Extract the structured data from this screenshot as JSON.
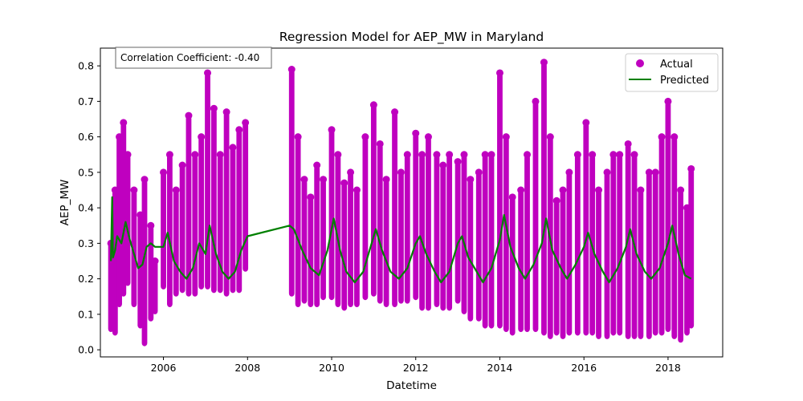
{
  "colors": {
    "actual": "#bf00bf",
    "predicted": "#008000",
    "axis": "#000000",
    "background": "#ffffff"
  },
  "chart_data": {
    "type": "scatter",
    "title": "Regression Model for AEP_MW in Maryland",
    "xlabel": "Datetime",
    "ylabel": "AEP_MW",
    "xlim": [
      2004.5,
      2019.3
    ],
    "ylim": [
      -0.02,
      0.85
    ],
    "x_ticks": [
      2006,
      2008,
      2010,
      2012,
      2014,
      2016,
      2018
    ],
    "x_tick_labels": [
      "2006",
      "2008",
      "2010",
      "2012",
      "2014",
      "2016",
      "2018"
    ],
    "y_ticks": [
      0.0,
      0.1,
      0.2,
      0.3,
      0.4,
      0.5,
      0.6,
      0.7,
      0.8
    ],
    "y_tick_labels": [
      "0.0",
      "0.1",
      "0.2",
      "0.3",
      "0.4",
      "0.5",
      "0.6",
      "0.7",
      "0.8"
    ],
    "grid": false,
    "legend_position": "top-right",
    "annotation": "Correlation Coefficient: -0.40",
    "series": [
      {
        "name": "Actual",
        "kind": "scatter",
        "color": "#bf00bf",
        "x": [
          2004.75,
          2004.85,
          2004.95,
          2005.05,
          2005.15,
          2005.3,
          2005.45,
          2005.55,
          2005.7,
          2005.8,
          2006.0,
          2006.15,
          2006.3,
          2006.45,
          2006.6,
          2006.75,
          2006.9,
          2007.05,
          2007.2,
          2007.35,
          2007.5,
          2007.65,
          2007.8,
          2007.95,
          2009.05,
          2009.2,
          2009.35,
          2009.5,
          2009.65,
          2009.8,
          2010.0,
          2010.15,
          2010.3,
          2010.45,
          2010.6,
          2010.8,
          2011.0,
          2011.15,
          2011.3,
          2011.5,
          2011.65,
          2011.8,
          2012.0,
          2012.15,
          2012.3,
          2012.5,
          2012.65,
          2012.8,
          2013.0,
          2013.15,
          2013.3,
          2013.5,
          2013.65,
          2013.8,
          2014.0,
          2014.15,
          2014.3,
          2014.5,
          2014.65,
          2014.85,
          2015.05,
          2015.2,
          2015.35,
          2015.5,
          2015.65,
          2015.85,
          2016.05,
          2016.2,
          2016.35,
          2016.55,
          2016.7,
          2016.85,
          2017.05,
          2017.2,
          2017.35,
          2017.55,
          2017.7,
          2017.85,
          2018.0,
          2018.15,
          2018.3,
          2018.45,
          2018.55
        ],
        "y_max": [
          0.3,
          0.45,
          0.6,
          0.64,
          0.55,
          0.45,
          0.38,
          0.48,
          0.35,
          0.25,
          0.5,
          0.55,
          0.45,
          0.52,
          0.66,
          0.55,
          0.6,
          0.78,
          0.68,
          0.55,
          0.67,
          0.57,
          0.62,
          0.64,
          0.79,
          0.6,
          0.48,
          0.43,
          0.52,
          0.48,
          0.62,
          0.55,
          0.47,
          0.5,
          0.45,
          0.6,
          0.69,
          0.58,
          0.48,
          0.67,
          0.5,
          0.55,
          0.61,
          0.55,
          0.6,
          0.55,
          0.52,
          0.55,
          0.53,
          0.55,
          0.48,
          0.5,
          0.55,
          0.55,
          0.78,
          0.6,
          0.43,
          0.45,
          0.55,
          0.7,
          0.81,
          0.6,
          0.42,
          0.45,
          0.5,
          0.55,
          0.64,
          0.55,
          0.45,
          0.5,
          0.55,
          0.55,
          0.58,
          0.55,
          0.45,
          0.5,
          0.5,
          0.6,
          0.7,
          0.6,
          0.45,
          0.4,
          0.51
        ],
        "y_min": [
          0.05,
          0.04,
          0.12,
          0.15,
          0.18,
          0.12,
          0.06,
          0.01,
          0.08,
          0.1,
          0.17,
          0.12,
          0.15,
          0.16,
          0.15,
          0.15,
          0.17,
          0.17,
          0.16,
          0.16,
          0.15,
          0.16,
          0.16,
          0.22,
          0.15,
          0.12,
          0.13,
          0.12,
          0.12,
          0.14,
          0.14,
          0.12,
          0.11,
          0.12,
          0.12,
          0.14,
          0.15,
          0.13,
          0.12,
          0.12,
          0.13,
          0.13,
          0.14,
          0.11,
          0.11,
          0.12,
          0.11,
          0.11,
          0.13,
          0.1,
          0.08,
          0.08,
          0.06,
          0.06,
          0.06,
          0.05,
          0.04,
          0.05,
          0.05,
          0.05,
          0.04,
          0.03,
          0.04,
          0.03,
          0.04,
          0.04,
          0.04,
          0.04,
          0.03,
          0.03,
          0.04,
          0.04,
          0.03,
          0.03,
          0.03,
          0.03,
          0.04,
          0.04,
          0.05,
          0.03,
          0.02,
          0.04,
          0.06
        ]
      },
      {
        "name": "Predicted",
        "kind": "line",
        "color": "#008000",
        "x": [
          2004.75,
          2004.78,
          2004.8,
          2004.85,
          2004.9,
          2005.0,
          2005.1,
          2005.2,
          2005.3,
          2005.4,
          2005.5,
          2005.6,
          2005.7,
          2005.8,
          2006.0,
          2006.1,
          2006.25,
          2006.4,
          2006.55,
          2006.7,
          2006.85,
          2007.0,
          2007.1,
          2007.25,
          2007.4,
          2007.55,
          2007.7,
          2007.85,
          2008.0,
          2009.0,
          2009.1,
          2009.3,
          2009.5,
          2009.7,
          2009.9,
          2010.05,
          2010.2,
          2010.35,
          2010.55,
          2010.75,
          2010.95,
          2011.05,
          2011.2,
          2011.4,
          2011.6,
          2011.8,
          2012.0,
          2012.1,
          2012.25,
          2012.45,
          2012.6,
          2012.8,
          2013.0,
          2013.1,
          2013.25,
          2013.45,
          2013.6,
          2013.8,
          2014.0,
          2014.1,
          2014.25,
          2014.45,
          2014.6,
          2014.8,
          2015.0,
          2015.1,
          2015.25,
          2015.45,
          2015.6,
          2015.8,
          2016.0,
          2016.1,
          2016.25,
          2016.45,
          2016.6,
          2016.8,
          2017.0,
          2017.1,
          2017.25,
          2017.45,
          2017.6,
          2017.8,
          2018.0,
          2018.1,
          2018.25,
          2018.4,
          2018.55
        ],
        "y": [
          0.25,
          0.43,
          0.26,
          0.28,
          0.32,
          0.3,
          0.36,
          0.31,
          0.27,
          0.23,
          0.24,
          0.29,
          0.3,
          0.29,
          0.29,
          0.33,
          0.25,
          0.22,
          0.2,
          0.23,
          0.3,
          0.27,
          0.35,
          0.27,
          0.22,
          0.2,
          0.22,
          0.28,
          0.32,
          0.35,
          0.34,
          0.28,
          0.23,
          0.21,
          0.28,
          0.37,
          0.28,
          0.22,
          0.19,
          0.22,
          0.3,
          0.34,
          0.28,
          0.22,
          0.2,
          0.23,
          0.3,
          0.32,
          0.27,
          0.22,
          0.19,
          0.22,
          0.3,
          0.32,
          0.26,
          0.22,
          0.19,
          0.23,
          0.31,
          0.38,
          0.29,
          0.23,
          0.2,
          0.24,
          0.3,
          0.37,
          0.28,
          0.23,
          0.2,
          0.24,
          0.29,
          0.33,
          0.27,
          0.22,
          0.19,
          0.23,
          0.29,
          0.34,
          0.27,
          0.22,
          0.2,
          0.23,
          0.3,
          0.35,
          0.27,
          0.21,
          0.2
        ]
      }
    ]
  }
}
